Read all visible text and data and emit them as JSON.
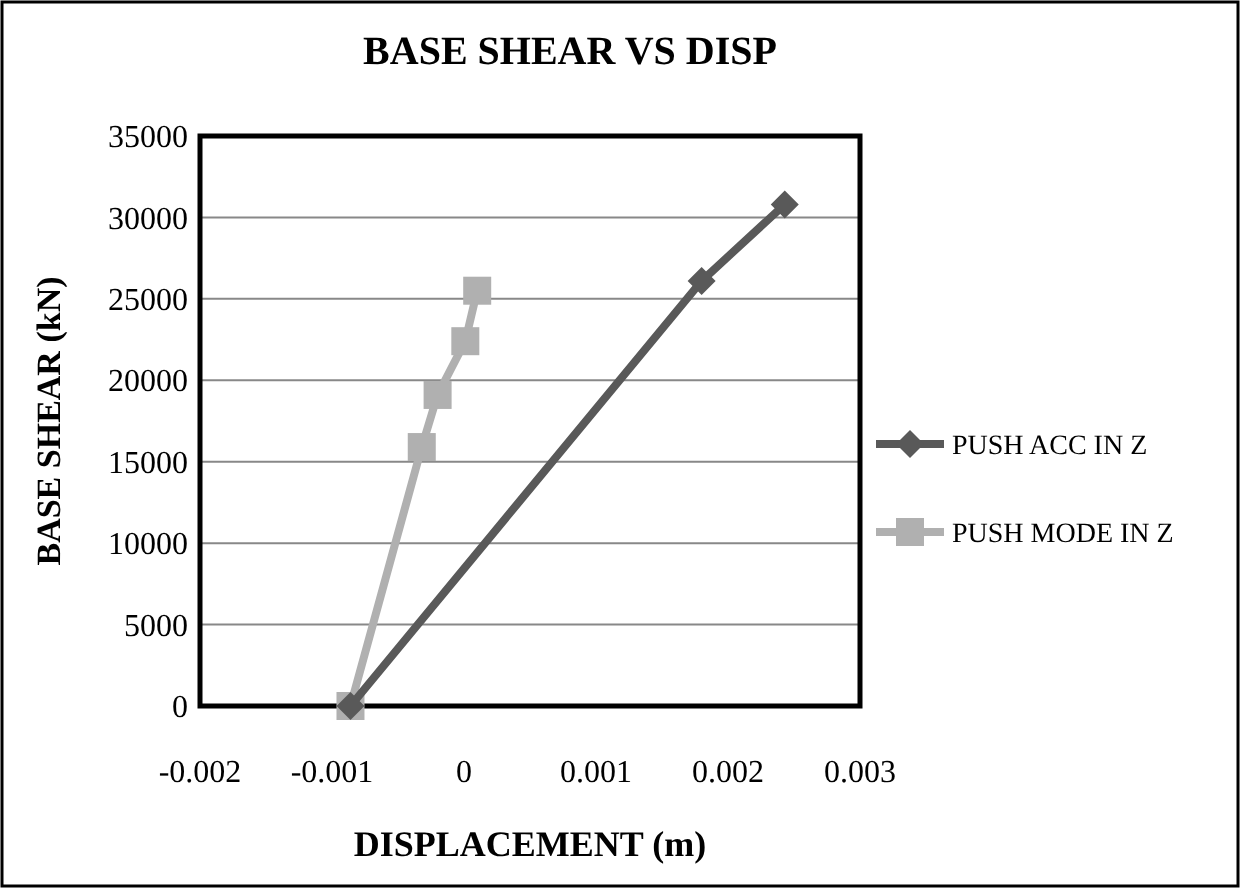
{
  "chart_data": {
    "type": "line",
    "title": "BASE SHEAR VS DISP",
    "xlabel": "DISPLACEMENT (m)",
    "ylabel": "BASE SHEAR (kN)",
    "series": [
      {
        "name": "PUSH ACC IN Z",
        "color": "#595959",
        "marker": "diamond",
        "x": [
          -0.00086,
          0.0018,
          0.00243
        ],
        "values": [
          0,
          26100,
          30800
        ]
      },
      {
        "name": "PUSH MODE IN Z",
        "color": "#b0b0b0",
        "marker": "square",
        "x": [
          -0.00086,
          -0.00032,
          -0.0002,
          1e-05,
          0.0001
        ],
        "values": [
          0,
          15900,
          19100,
          22400,
          25500
        ]
      }
    ],
    "xlim": [
      -0.002,
      0.003
    ],
    "xticks": [
      -0.002,
      -0.001,
      0,
      0.001,
      0.002,
      0.003
    ],
    "ylim": [
      0,
      35000
    ],
    "yticks": [
      0,
      5000,
      10000,
      15000,
      20000,
      25000,
      30000,
      35000
    ],
    "grid": "y",
    "legend": "right"
  }
}
